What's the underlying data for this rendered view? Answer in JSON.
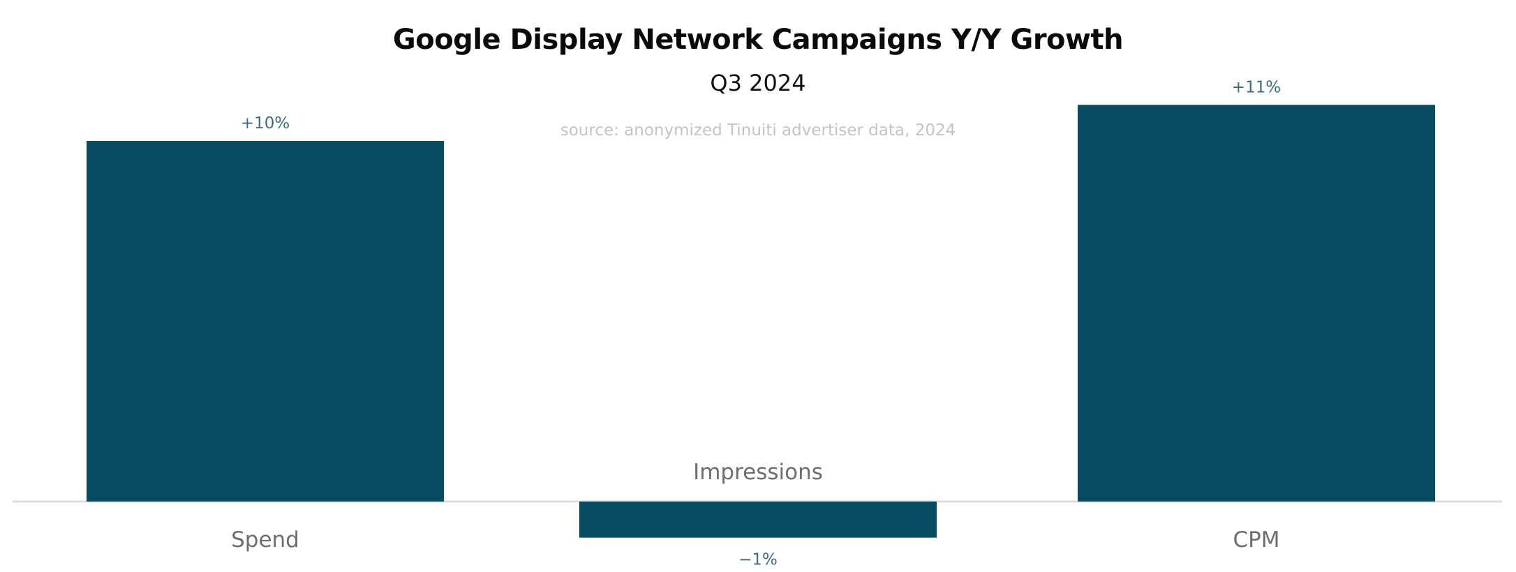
{
  "chart_data": {
    "type": "bar",
    "title": "Google Display Network Campaigns Y/Y Growth",
    "subtitle": "Q3 2024",
    "source": "source: anonymized Tinuiti advertiser data, 2024",
    "categories": [
      "Spend",
      "Impressions",
      "CPM"
    ],
    "values": [
      10,
      -1,
      11
    ],
    "value_labels": [
      "+10%",
      "−1%",
      "+11%"
    ],
    "value_unit": "%",
    "ylim": [
      -1,
      11
    ],
    "grid": false,
    "legend": "none",
    "colors": {
      "bar": "#074b60",
      "value_label": "#3d6b7c",
      "category_label": "#6e6e6e",
      "baseline": "#dcdcdc"
    }
  }
}
